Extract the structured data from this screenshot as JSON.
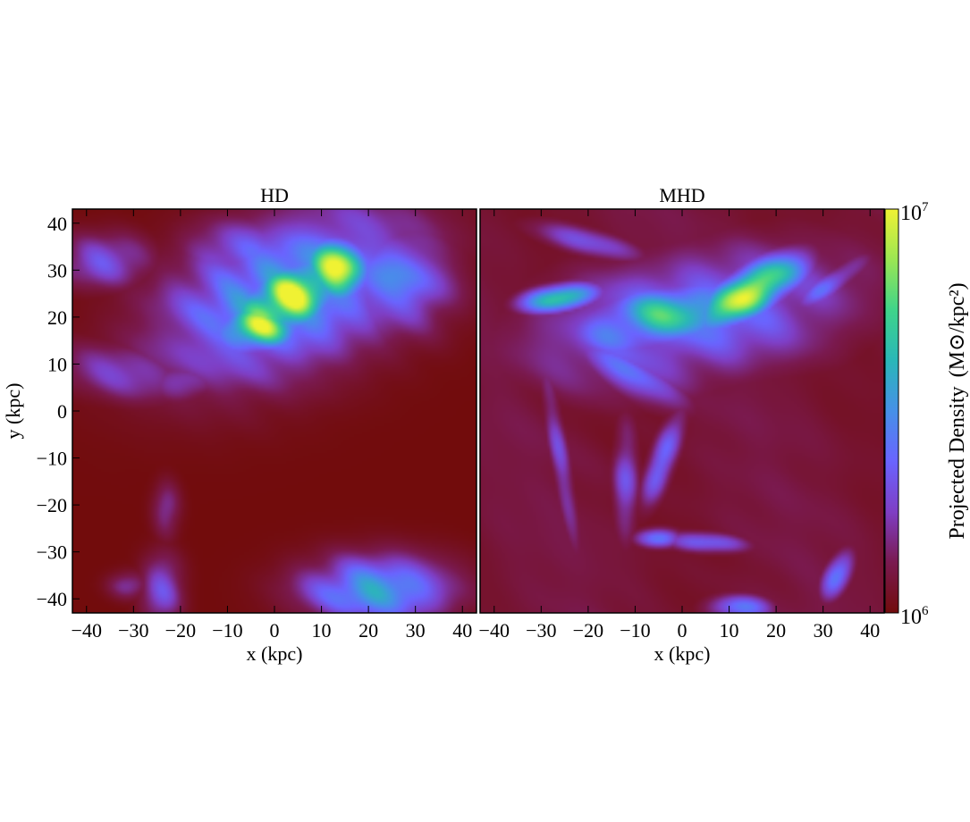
{
  "chart_data": [
    {
      "type": "heatmap",
      "title": "HD",
      "xlabel": "x (kpc)",
      "ylabel": "y (kpc)",
      "xlim": [
        -43,
        43
      ],
      "ylim": [
        -43,
        43
      ],
      "xticks": [
        -40,
        -30,
        -20,
        -10,
        0,
        10,
        20,
        30,
        40
      ],
      "yticks": [
        40,
        30,
        20,
        10,
        0,
        -10,
        -20,
        -30,
        -40
      ],
      "features": [
        {
          "x": 3,
          "y": 24,
          "sx": 9,
          "sy": 5,
          "rot": 28,
          "level": 1.0
        },
        {
          "x": 13,
          "y": 30,
          "sx": 5,
          "sy": 5,
          "rot": 0,
          "level": 0.95
        },
        {
          "x": -3,
          "y": 18,
          "sx": 7,
          "sy": 4,
          "rot": 10,
          "level": 0.85
        },
        {
          "x": 3,
          "y": 25,
          "sx": 20,
          "sy": 11,
          "rot": 22,
          "level": 0.55
        },
        {
          "x": 25,
          "y": 28,
          "sx": 9,
          "sy": 8,
          "rot": 0,
          "level": 0.45
        },
        {
          "x": -5,
          "y": 33,
          "sx": 10,
          "sy": 6,
          "rot": 0,
          "level": 0.35
        },
        {
          "x": -36,
          "y": 32,
          "sx": 7,
          "sy": 4,
          "rot": 0,
          "level": 0.32
        },
        {
          "x": -32,
          "y": 8,
          "sx": 10,
          "sy": 4,
          "rot": -10,
          "level": 0.28
        },
        {
          "x": -20,
          "y": 6,
          "sx": 6,
          "sy": 3,
          "rot": 0,
          "level": 0.25
        },
        {
          "x": 22,
          "y": -38,
          "sx": 11,
          "sy": 5,
          "rot": 0,
          "level": 0.55
        },
        {
          "x": 18,
          "y": -36,
          "sx": 7,
          "sy": 3,
          "rot": 0,
          "level": 0.4
        },
        {
          "x": -24,
          "y": -38,
          "sx": 3,
          "sy": 5,
          "rot": 0,
          "level": 0.32
        },
        {
          "x": -23,
          "y": -21,
          "sx": 2,
          "sy": 4,
          "rot": 0,
          "level": 0.22
        },
        {
          "x": -31,
          "y": -37,
          "sx": 3,
          "sy": 2,
          "rot": 0,
          "level": 0.22
        }
      ]
    },
    {
      "type": "heatmap",
      "title": "MHD",
      "xlabel": "x (kpc)",
      "ylabel": "",
      "xlim": [
        -43,
        43
      ],
      "ylim": [
        -43,
        43
      ],
      "xticks": [
        -40,
        -30,
        -20,
        -10,
        0,
        10,
        20,
        30,
        40
      ],
      "yticks": [],
      "features": [
        {
          "x": 14,
          "y": 25,
          "sx": 9,
          "sy": 3.5,
          "rot": 30,
          "level": 1.0
        },
        {
          "x": -26,
          "y": 24,
          "sx": 6,
          "sy": 2,
          "rot": 8,
          "level": 0.75
        },
        {
          "x": -4,
          "y": 20,
          "sx": 14,
          "sy": 5,
          "rot": 12,
          "level": 0.65
        },
        {
          "x": 2,
          "y": 20,
          "sx": 26,
          "sy": 10,
          "rot": 10,
          "level": 0.4
        },
        {
          "x": -12,
          "y": 8,
          "sx": 10,
          "sy": 3,
          "rot": -30,
          "level": 0.4
        },
        {
          "x": -20,
          "y": 36,
          "sx": 9,
          "sy": 2,
          "rot": -15,
          "level": 0.35
        },
        {
          "x": 30,
          "y": 26,
          "sx": 8,
          "sy": 2,
          "rot": 35,
          "level": 0.35
        },
        {
          "x": -12,
          "y": -15,
          "sx": 2,
          "sy": 9,
          "rot": 0,
          "level": 0.3
        },
        {
          "x": -26,
          "y": -10,
          "sx": 1.5,
          "sy": 15,
          "rot": 10,
          "level": 0.28
        },
        {
          "x": -4,
          "y": -10,
          "sx": 2,
          "sy": 8,
          "rot": -20,
          "level": 0.38
        },
        {
          "x": -5,
          "y": -27,
          "sx": 3.5,
          "sy": 1.5,
          "rot": 0,
          "level": 0.45
        },
        {
          "x": 5,
          "y": -28,
          "sx": 6,
          "sy": 1.5,
          "rot": -5,
          "level": 0.45
        },
        {
          "x": 12,
          "y": -42,
          "sx": 5,
          "sy": 2,
          "rot": 0,
          "level": 0.4
        },
        {
          "x": 33,
          "y": -35,
          "sx": 2,
          "sy": 4,
          "rot": -25,
          "level": 0.45
        }
      ]
    }
  ],
  "colorbar": {
    "label": "Projected Density",
    "unit_label": "(M⊙/kpc²)",
    "min_label_base": "10",
    "min_label_exp": "6",
    "max_label_base": "10",
    "max_label_exp": "7",
    "colors": [
      "#720c0c",
      "#7a1a50",
      "#7f3ec4",
      "#6a64ff",
      "#4690e8",
      "#2ab7b8",
      "#3fd48a",
      "#9be653",
      "#f0f233"
    ],
    "background_levels": [
      0.0,
      0.08
    ]
  }
}
